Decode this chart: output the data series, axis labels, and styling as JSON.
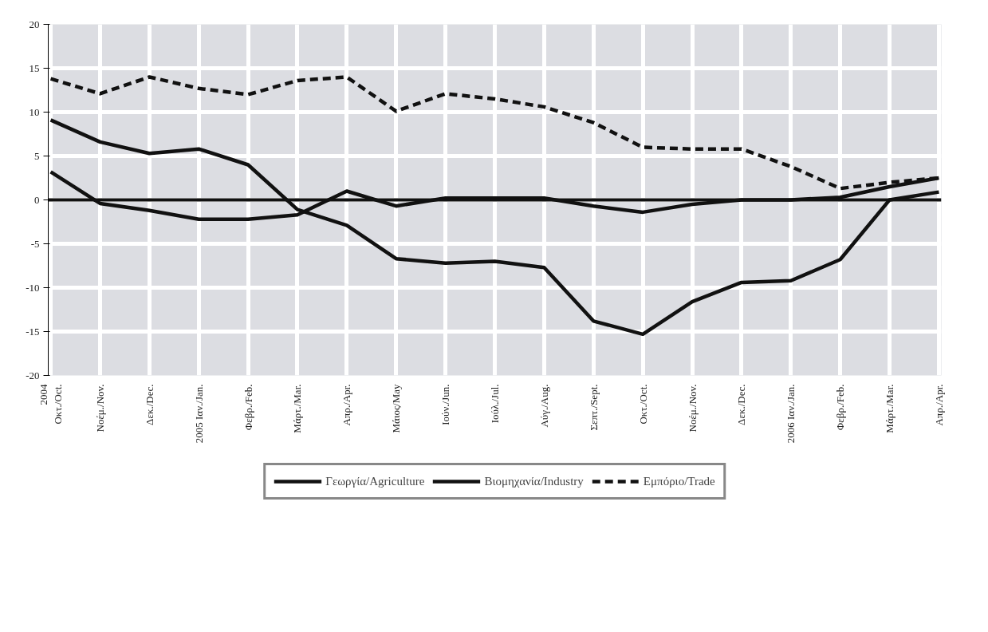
{
  "chart_data": {
    "type": "line",
    "categories": [
      "2004\nΟκτ./Oct.",
      "Νοέμ./Nov.",
      "Δεκ./Dec.",
      "2005 Ιαν./Jan.",
      "Φεβρ./Feb.",
      "Μάρτ./Mar.",
      "Απρ./Apr.",
      "Μάιος/May",
      "Ιούν./Jun.",
      "Ιούλ./Jul.",
      "Αύγ./Aug.",
      "Σεπτ./Sept.",
      "Οκτ./Oct.",
      "Νοέμ./Nov.",
      "Δεκ./Dec.",
      "2006 Ιαν./Jan.",
      "Φεβρ./Feb.",
      "Μάρτ./Mar.",
      "Απρ./Apr."
    ],
    "series": [
      {
        "name": "Γεωργία/Agriculture",
        "color": "#111111",
        "line_style": "solid",
        "values": [
          9.1,
          6.6,
          5.3,
          5.8,
          4.0,
          -1.1,
          -2.9,
          -6.7,
          -7.2,
          -7.0,
          -7.7,
          -13.8,
          -15.3,
          -11.6,
          -9.4,
          -9.2,
          -6.8,
          0,
          0.9
        ]
      },
      {
        "name": "Βιομηχανία/Industry",
        "color": "#111111",
        "line_style": "solid",
        "values": [
          3.2,
          -0.4,
          -1.2,
          -2.2,
          -2.2,
          -1.7,
          1.0,
          -0.7,
          0.2,
          0.2,
          0.2,
          -0.7,
          -1.4,
          -0.5,
          0,
          0,
          0.3,
          1.5,
          2.5
        ]
      },
      {
        "name": "Εμπόριο/Trade",
        "color": "#111111",
        "line_style": "dashed",
        "values": [
          13.8,
          12.1,
          14.0,
          12.7,
          12.0,
          13.6,
          14.0,
          10.1,
          12.1,
          11.5,
          10.6,
          8.8,
          6.0,
          5.8,
          5.8,
          3.8,
          1.3,
          2.0,
          2.5
        ]
      }
    ],
    "ylim": [
      -20,
      20
    ],
    "yticks": [
      -20,
      -15,
      -10,
      -5,
      0,
      5,
      10,
      15,
      20
    ],
    "ref_lines": [
      {
        "axis": "y",
        "value": 0,
        "color": "#111111"
      }
    ],
    "grid": true,
    "legend": "bottom"
  }
}
